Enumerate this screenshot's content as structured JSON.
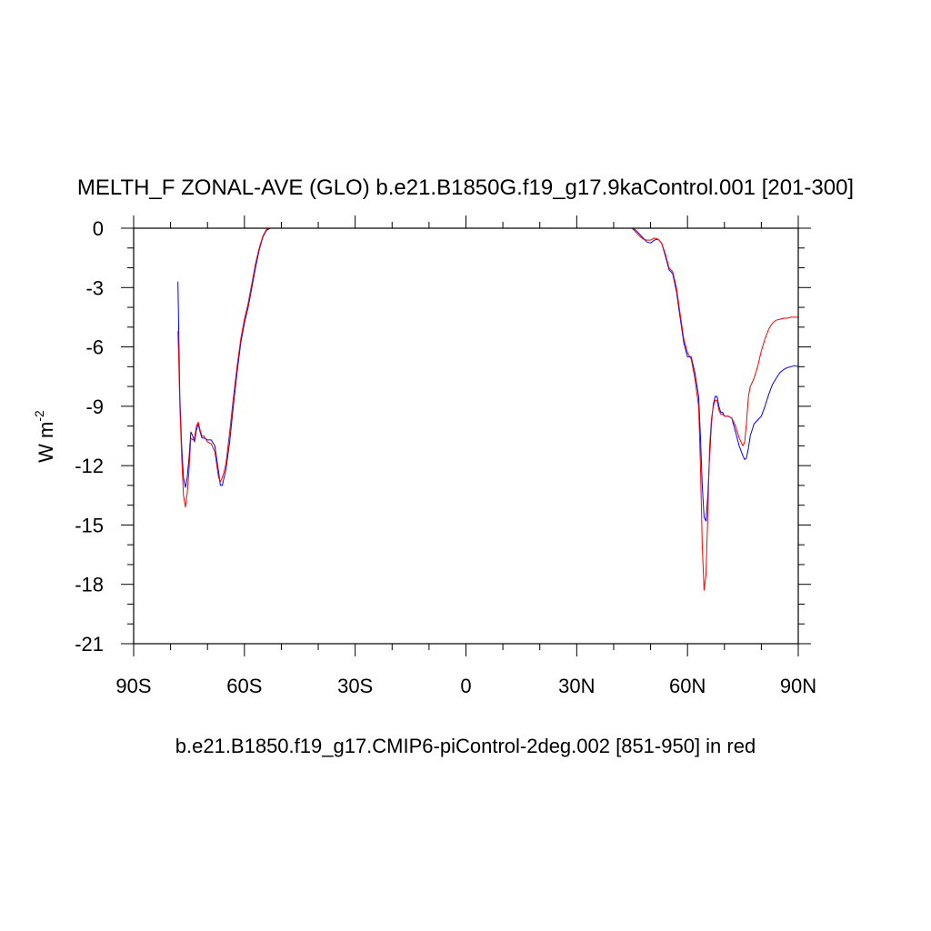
{
  "chart_data": {
    "type": "line",
    "title": "MELTH_F ZONAL-AVE (GLO) b.e21.B1850G.f19_g17.9kaControl.001 [201-300]",
    "ylabel": "W m",
    "ylabel_exponent": "-2",
    "xlabel": "",
    "footer": "b.e21.B1850.f19_g17.CMIP6-piControl-2deg.002 [851-950] in red",
    "xlim": [
      -90,
      90
    ],
    "ylim": [
      -21,
      0
    ],
    "x_ticks": [
      -90,
      -60,
      -30,
      0,
      30,
      60,
      90
    ],
    "x_tick_labels": [
      "90S",
      "60S",
      "30S",
      "0",
      "30N",
      "60N",
      "90N"
    ],
    "y_ticks": [
      0,
      -3,
      -6,
      -9,
      -12,
      -15,
      -18,
      -21
    ],
    "y_tick_labels": [
      "0",
      "-3",
      "-6",
      "-9",
      "-12",
      "-15",
      "-18",
      "-21"
    ],
    "grid": false,
    "legend": "none",
    "colors": {
      "series_1": "#0000ff",
      "series_2": "#ff0000"
    },
    "series": [
      {
        "color": "#0000ff",
        "segments": [
          {
            "x": [
              -78,
              -77.8,
              -77.5,
              -77,
              -76.5,
              -76,
              -75.5,
              -75,
              -74.5,
              -74,
              -73.5,
              -73,
              -72.5,
              -72,
              -71.5,
              -71,
              -70,
              -69,
              -68,
              -67,
              -66.5,
              -66,
              -65.5,
              -65,
              -64,
              -63,
              -62,
              -61,
              -60,
              -59,
              -58,
              -57,
              -56,
              -55,
              -54,
              -53,
              -52,
              -51,
              -50,
              -49
            ],
            "y": [
              -2.7,
              -5.0,
              -8.5,
              -11.0,
              -12.6,
              -13.1,
              -12.6,
              -11.6,
              -10.3,
              -10.5,
              -10.8,
              -10.2,
              -9.9,
              -10.3,
              -10.6,
              -10.6,
              -10.7,
              -10.7,
              -11.0,
              -12.3,
              -13.0,
              -13.0,
              -12.6,
              -12.2,
              -10.8,
              -9.0,
              -7.3,
              -5.8,
              -4.8,
              -4.0,
              -3.0,
              -2.0,
              -1.1,
              -0.45,
              -0.1,
              0,
              0,
              0,
              0,
              0
            ]
          },
          {
            "x": [
              43,
              45,
              46,
              47,
              48,
              49,
              50,
              51,
              52,
              53,
              54,
              55,
              56,
              57,
              58,
              59,
              60,
              61,
              62,
              63,
              63.5,
              64,
              64.5,
              65,
              65.5,
              66,
              66.5,
              67,
              67.5,
              68,
              68.5,
              69,
              69.5,
              70,
              71,
              72,
              73,
              74,
              75,
              75.5,
              76,
              76.5,
              77,
              78,
              79,
              80,
              81,
              82,
              83,
              84,
              85,
              86,
              87,
              88,
              89,
              90
            ],
            "y": [
              0,
              0,
              -0.1,
              -0.3,
              -0.5,
              -0.7,
              -0.75,
              -0.6,
              -0.55,
              -0.75,
              -1.4,
              -2.1,
              -2.3,
              -3.2,
              -4.5,
              -5.8,
              -6.5,
              -6.5,
              -7.3,
              -8.5,
              -10.5,
              -13.0,
              -14.6,
              -14.8,
              -13.5,
              -11.5,
              -9.8,
              -8.9,
              -8.5,
              -8.5,
              -9.0,
              -9.3,
              -9.3,
              -9.5,
              -9.5,
              -9.6,
              -10.3,
              -11.0,
              -11.5,
              -11.7,
              -11.6,
              -11.1,
              -10.5,
              -9.9,
              -9.7,
              -9.5,
              -9.0,
              -8.4,
              -7.9,
              -7.6,
              -7.3,
              -7.15,
              -7.05,
              -7.0,
              -6.95,
              -7.0
            ]
          }
        ]
      },
      {
        "color": "#ff0000",
        "segments": [
          {
            "x": [
              -78,
              -77.8,
              -77.5,
              -77,
              -76.5,
              -76,
              -75.5,
              -75,
              -74.5,
              -74,
              -73.5,
              -73,
              -72.5,
              -72,
              -71.5,
              -71,
              -70,
              -69,
              -68,
              -67,
              -66.5,
              -66,
              -65.5,
              -65,
              -64,
              -63,
              -62,
              -61,
              -60,
              -59,
              -58,
              -57,
              -56,
              -55,
              -54,
              -53,
              -52,
              -51,
              -50,
              -49
            ],
            "y": [
              -5.2,
              -6.5,
              -9.0,
              -11.5,
              -13.5,
              -14.1,
              -13.4,
              -12.2,
              -10.6,
              -10.7,
              -10.6,
              -10.0,
              -9.8,
              -10.2,
              -10.5,
              -10.5,
              -10.8,
              -10.9,
              -11.3,
              -12.6,
              -12.8,
              -12.6,
              -12.3,
              -11.9,
              -10.3,
              -8.6,
              -7.0,
              -5.6,
              -4.6,
              -3.8,
              -2.8,
              -1.8,
              -1.0,
              -0.4,
              -0.05,
              0,
              0,
              0,
              0,
              0
            ]
          },
          {
            "x": [
              43,
              45,
              46,
              47,
              48,
              49,
              50,
              51,
              52,
              53,
              54,
              55,
              56,
              57,
              58,
              59,
              60,
              61,
              62,
              63,
              63.5,
              64,
              64.5,
              65,
              65.5,
              66,
              66.5,
              67,
              67.5,
              68,
              68.5,
              69,
              69.5,
              70,
              71,
              72,
              73,
              74,
              75,
              75.5,
              76,
              76.5,
              77,
              78,
              79,
              80,
              81,
              82,
              83,
              84,
              85,
              86,
              87,
              88,
              89,
              90
            ],
            "y": [
              0,
              0,
              -0.2,
              -0.4,
              -0.55,
              -0.6,
              -0.6,
              -0.5,
              -0.55,
              -0.75,
              -1.3,
              -2.0,
              -2.2,
              -3.0,
              -4.3,
              -5.6,
              -6.3,
              -6.6,
              -7.6,
              -9.0,
              -12.0,
              -16.0,
              -18.3,
              -17.5,
              -14.5,
              -11.0,
              -9.6,
              -9.0,
              -8.7,
              -8.7,
              -9.2,
              -9.4,
              -9.4,
              -9.5,
              -9.5,
              -9.6,
              -10.0,
              -10.6,
              -11.0,
              -10.8,
              -9.8,
              -8.5,
              -8.0,
              -7.6,
              -7.0,
              -6.2,
              -5.6,
              -5.1,
              -4.8,
              -4.65,
              -4.6,
              -4.55,
              -4.55,
              -4.5,
              -4.5,
              -4.5
            ]
          }
        ]
      }
    ]
  }
}
